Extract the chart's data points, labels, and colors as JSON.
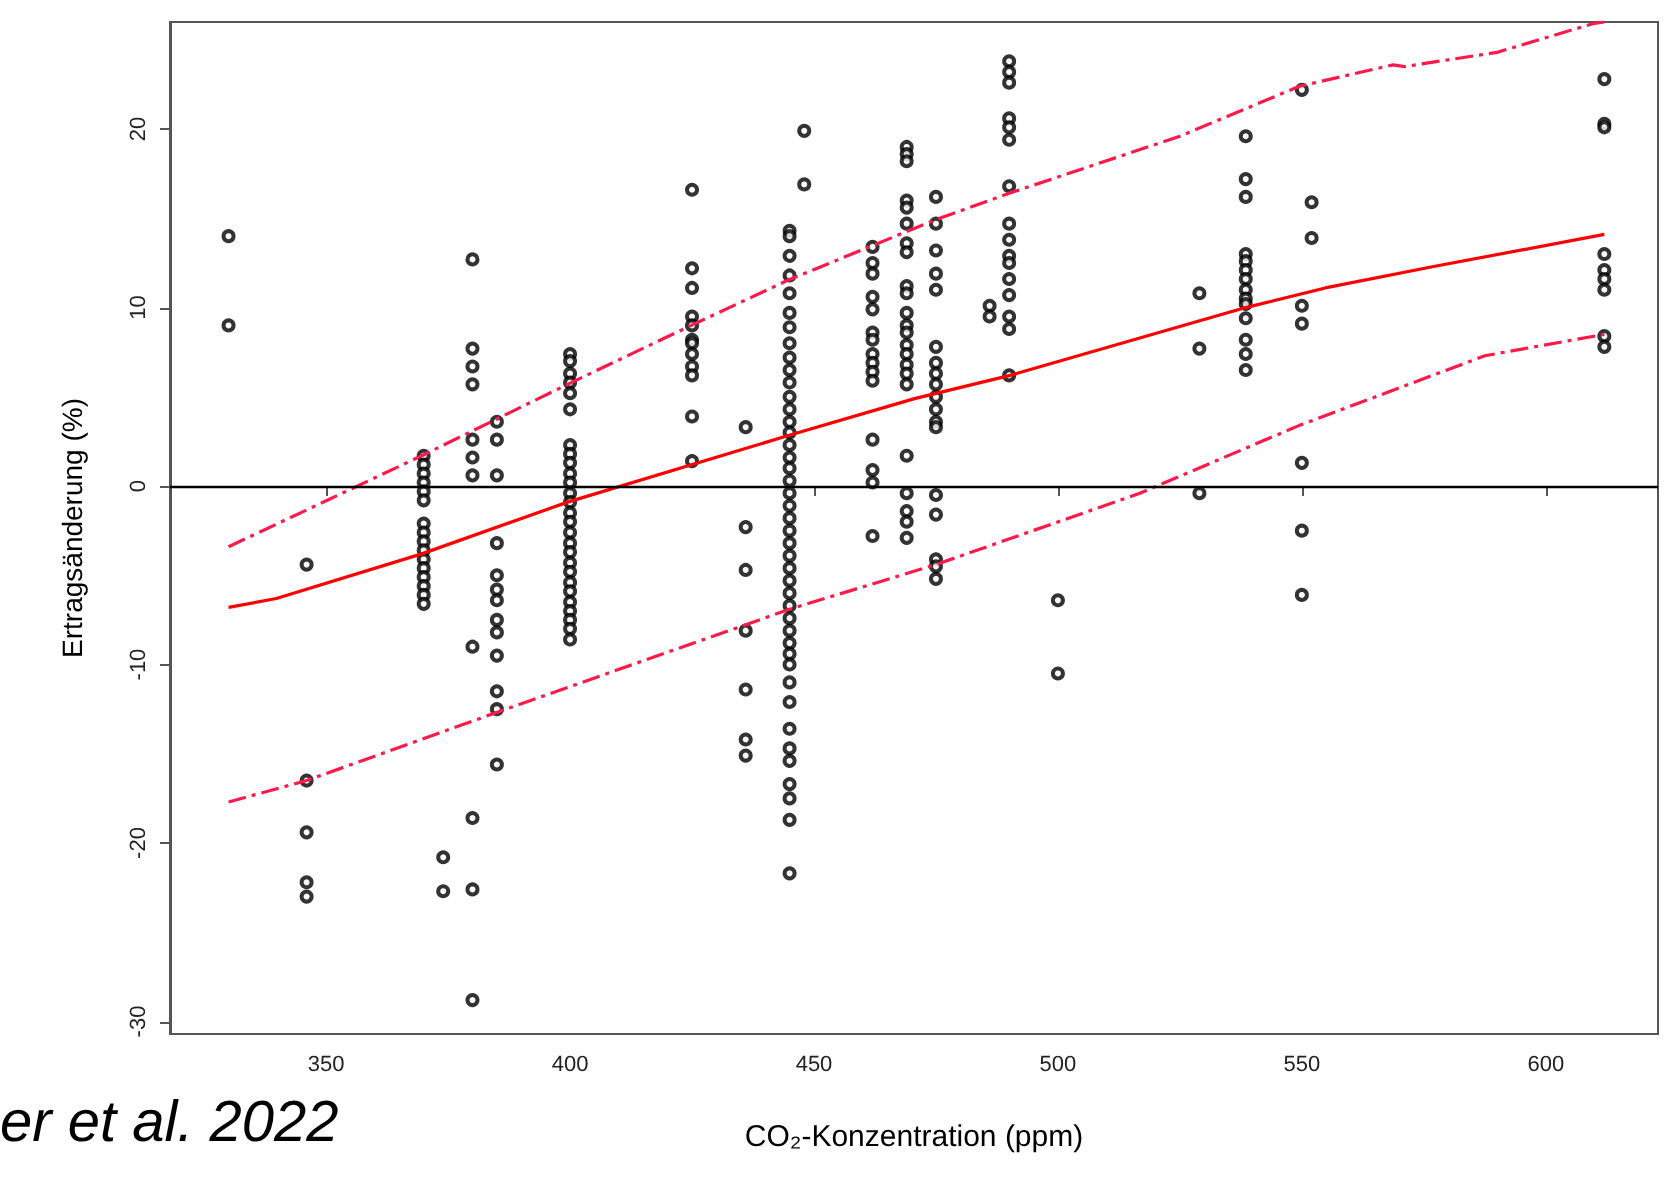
{
  "chart_data": {
    "type": "scatter",
    "xlabel": "CO₂-Konzentration (ppm)",
    "ylabel": "Ertragsänderung (%)",
    "annotations": [
      "er et al. 2022"
    ],
    "xlim": [
      318,
      623
    ],
    "xticks": [
      350,
      400,
      450,
      500,
      550,
      600
    ],
    "ylim": [
      -30.7,
      26
    ],
    "yticks": [
      -30,
      -20,
      -10,
      0,
      10,
      20
    ],
    "grid": false,
    "marker": "circle",
    "ref_lines": [
      {
        "axis": "y",
        "value": 0,
        "color": "#000000"
      }
    ],
    "series": [
      {
        "type": "scatter",
        "color": "#000000",
        "x": [
          330,
          330,
          346,
          346,
          346,
          346,
          346,
          370,
          370,
          370,
          370,
          370,
          370,
          370,
          370,
          370,
          370,
          370,
          370,
          370,
          370,
          370,
          370,
          380,
          380,
          380,
          380,
          380,
          380,
          380,
          380,
          380,
          380,
          380,
          374,
          374,
          385,
          385,
          385,
          385,
          385,
          385,
          385,
          385,
          385,
          385,
          385,
          385,
          385,
          400,
          400,
          400,
          400,
          400,
          400,
          400,
          400,
          400,
          400,
          400,
          400,
          400,
          400,
          400,
          400,
          400,
          400,
          400,
          400,
          400,
          400,
          400,
          400,
          400,
          400,
          400,
          425,
          425,
          425,
          425,
          425,
          425,
          425,
          425,
          425,
          425,
          425,
          425,
          436,
          436,
          436,
          436,
          436,
          436,
          436,
          445,
          445,
          445,
          445,
          445,
          445,
          445,
          445,
          445,
          445,
          445,
          445,
          445,
          445,
          445,
          445,
          445,
          445,
          445,
          445,
          445,
          445,
          445,
          445,
          445,
          445,
          445,
          445,
          445,
          445,
          445,
          445,
          445,
          445,
          445,
          445,
          445,
          445,
          445,
          445,
          445,
          445,
          445,
          448,
          448,
          462,
          462,
          462,
          462,
          462,
          462,
          462,
          462,
          462,
          462,
          462,
          462,
          462,
          462,
          462,
          469,
          469,
          469,
          469,
          469,
          469,
          469,
          469,
          469,
          469,
          469,
          469,
          469,
          469,
          469,
          469,
          469,
          469,
          469,
          469,
          469,
          469,
          469,
          475,
          475,
          475,
          475,
          475,
          475,
          475,
          475,
          475,
          475,
          475,
          475,
          475,
          475,
          475,
          475,
          475,
          475,
          486,
          486,
          490,
          490,
          490,
          490,
          490,
          490,
          490,
          490,
          490,
          490,
          490,
          490,
          490,
          490,
          490,
          490,
          500,
          500,
          529,
          529,
          529,
          538.5,
          538.5,
          538.5,
          538.5,
          538.5,
          538.5,
          538.5,
          538.5,
          538.5,
          538.5,
          538.5,
          538.5,
          538.5,
          538.5,
          550,
          550,
          550,
          550,
          550,
          550,
          552,
          552,
          612,
          612,
          612,
          612,
          612,
          612,
          612,
          612,
          612
        ],
        "values": [
          14,
          9,
          -4.4,
          -16.5,
          -19.4,
          -22.2,
          -23,
          1.7,
          1.2,
          0.7,
          0.2,
          -0.3,
          -0.8,
          -2.1,
          -2.6,
          -3.1,
          -3.6,
          -4.1,
          -4.6,
          -5.1,
          -5.6,
          -6.1,
          -6.6,
          12.7,
          7.7,
          6.7,
          5.7,
          2.6,
          1.6,
          0.6,
          -9,
          -18.6,
          -22.6,
          -28.8,
          -20.8,
          -22.7,
          3.6,
          2.6,
          0.6,
          -3.2,
          -5,
          -5.8,
          -6.4,
          -7.5,
          -8.2,
          -9.5,
          -11.5,
          -12.5,
          -15.6,
          7.4,
          7,
          6.3,
          5.8,
          5.2,
          4.3,
          2.3,
          1.8,
          1.3,
          0.7,
          0.2,
          -0.4,
          -0.9,
          -1.5,
          -2,
          -2.6,
          -3.2,
          -3.7,
          -4.3,
          -4.8,
          -5.4,
          -5.9,
          -6.5,
          -7,
          -7.5,
          -8,
          -8.6,
          16.6,
          12.2,
          11.1,
          9.5,
          9,
          8.2,
          8,
          7.4,
          6.7,
          6.2,
          3.9,
          1.4,
          3.3,
          -2.3,
          -4.7,
          -8.1,
          -11.4,
          -14.2,
          -15.1,
          14.3,
          14,
          12.9,
          11.8,
          10.8,
          9.7,
          8.9,
          8,
          7.2,
          6.5,
          5.8,
          5,
          4.3,
          3.6,
          3,
          2.3,
          1.6,
          1,
          0.3,
          -0.4,
          -1.1,
          -1.8,
          -2.5,
          -3.2,
          -3.9,
          -4.6,
          -5.3,
          -6,
          -6.7,
          -7.4,
          -8.1,
          -8.8,
          -9.4,
          -10,
          -11,
          -12.1,
          -13.6,
          -14.7,
          -15.4,
          -16.7,
          -17.5,
          -18.7,
          -21.7,
          19.9,
          16.9,
          13.4,
          12.5,
          11.9,
          10.6,
          9.9,
          8.6,
          8.2,
          7.4,
          6.9,
          6.4,
          5.9,
          2.6,
          0.9,
          0.2,
          -2.8,
          19,
          18.6,
          18.2,
          16,
          15.6,
          14.7,
          13.6,
          13.1,
          11.2,
          10.8,
          9.7,
          9,
          8.6,
          7.9,
          7.4,
          6.8,
          6.3,
          5.7,
          1.7,
          -0.4,
          -1.4,
          -2,
          -2.9,
          16.2,
          14.7,
          13.2,
          11.9,
          11,
          7.8,
          6.9,
          6.3,
          5.7,
          5,
          4.3,
          3.6,
          3.3,
          -0.5,
          -1.6,
          -4.1,
          -4.5,
          -5.2,
          10.1,
          9.5,
          23.8,
          23.2,
          22.6,
          20.6,
          20.1,
          19.4,
          16.8,
          14.7,
          13.8,
          12.9,
          12.5,
          11.6,
          10.7,
          9.5,
          8.8,
          6.2,
          -6.4,
          -10.5,
          10.8,
          7.7,
          -0.4,
          19.6,
          17.2,
          16.2,
          13,
          12.6,
          12.1,
          11.6,
          11,
          10.5,
          10.2,
          9.4,
          8.2,
          7.4,
          6.5,
          22.2,
          10.1,
          9.1,
          1.3,
          -2.5,
          -6.1,
          15.9,
          13.9,
          22.8,
          20.3,
          20.1,
          13,
          12.1,
          11.6,
          11,
          8.4,
          7.8
        ]
      },
      {
        "type": "line",
        "color": "#ff0000",
        "line_style": "solid",
        "marker": "none",
        "x": [
          330,
          339.8,
          369.6,
          399.5,
          444.4,
          470.6,
          490.2,
          538.5,
          554.8,
          577,
          612
        ],
        "values": [
          -6.8,
          -6.3,
          -3.8,
          -0.9,
          2.8,
          4.9,
          6.2,
          10,
          11.1,
          12.3,
          14.1
        ]
      },
      {
        "type": "line",
        "color": "#ff1a4b",
        "line_style": "dashed",
        "marker": "none",
        "x": [
          330,
          369.6,
          399.5,
          425.6,
          444.4,
          474.7,
          490,
          525,
          549.5,
          568.7,
          571,
          590,
          609.6,
          612
        ],
        "values": [
          -3.4,
          1.7,
          5.7,
          9.1,
          11.5,
          14.9,
          16.4,
          19.6,
          22.4,
          23.6,
          23.5,
          24.3,
          25.9,
          26
        ]
      },
      {
        "type": "line",
        "color": "#ff1a4b",
        "line_style": "dashed",
        "marker": "none",
        "x": [
          330,
          346,
          384.8,
          445,
          475,
          516.8,
          549.5,
          587.5,
          612
        ],
        "values": [
          -17.7,
          -16.5,
          -12.7,
          -6.9,
          -4.4,
          -0.4,
          3.4,
          7.3,
          8.5
        ]
      }
    ]
  }
}
